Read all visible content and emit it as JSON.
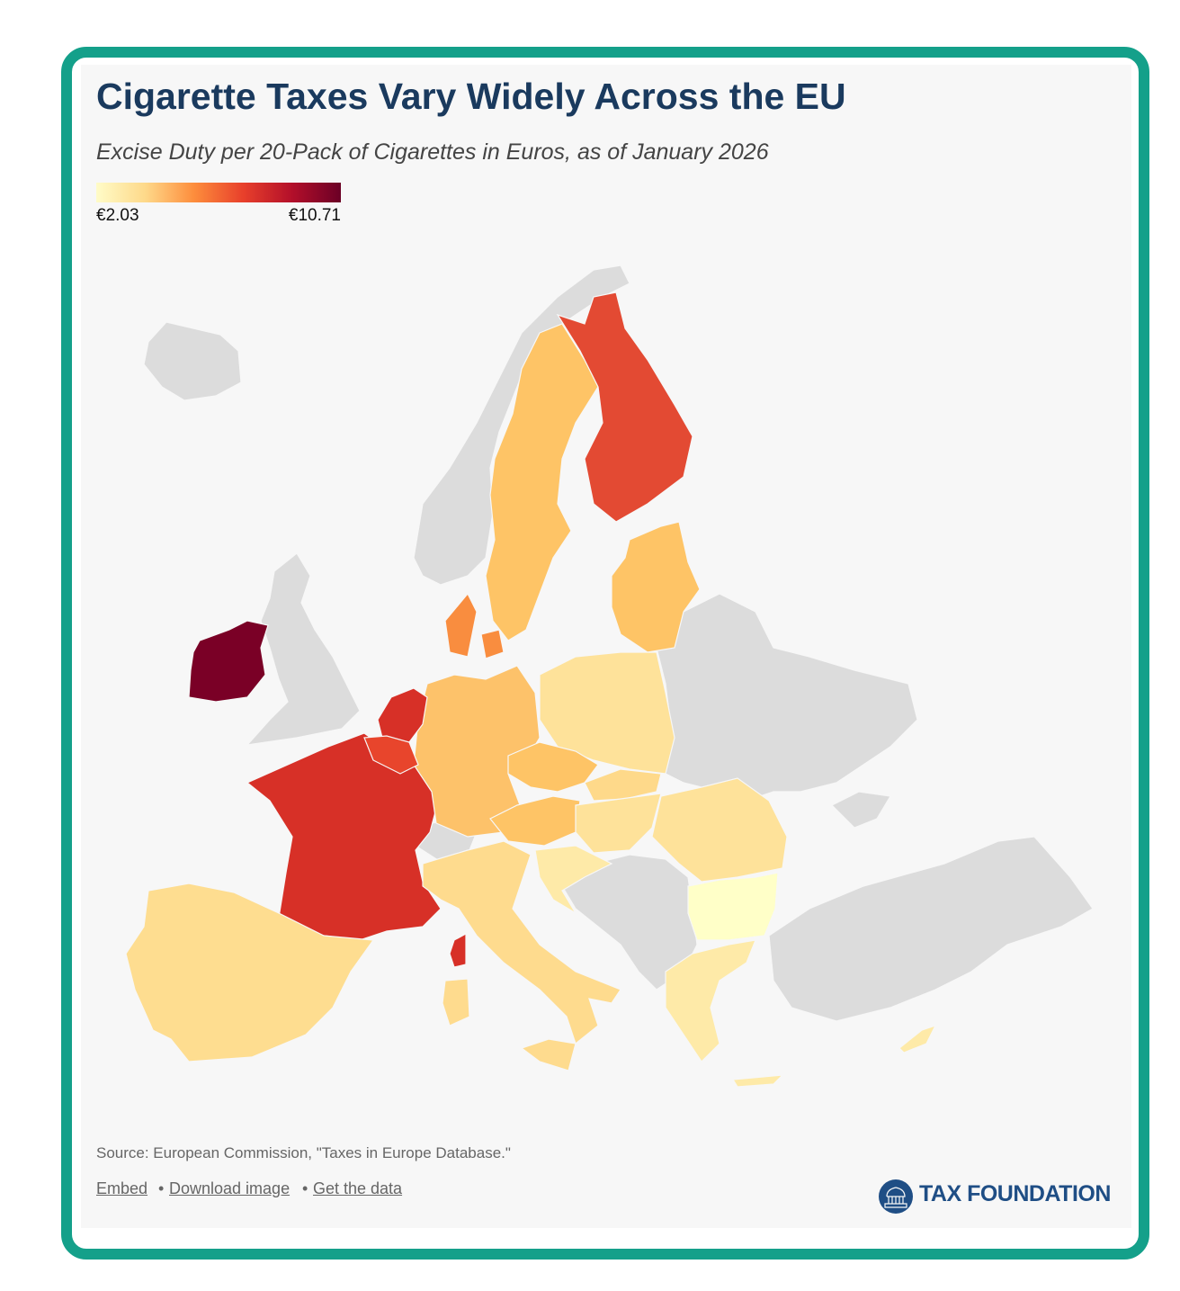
{
  "header": {
    "title": "Cigarette Taxes Vary Widely Across the EU",
    "subtitle": "Excise Duty per 20-Pack of Cigarettes in Euros, as of January 2026"
  },
  "legend": {
    "min_label": "€2.03",
    "max_label": "€10.71"
  },
  "footer": {
    "source": "Source: European Commission, \"Taxes in Europe Database.\"",
    "links": [
      "Embed",
      "Download image",
      "Get the data"
    ],
    "logo": "TAX FOUNDATION"
  }
}
